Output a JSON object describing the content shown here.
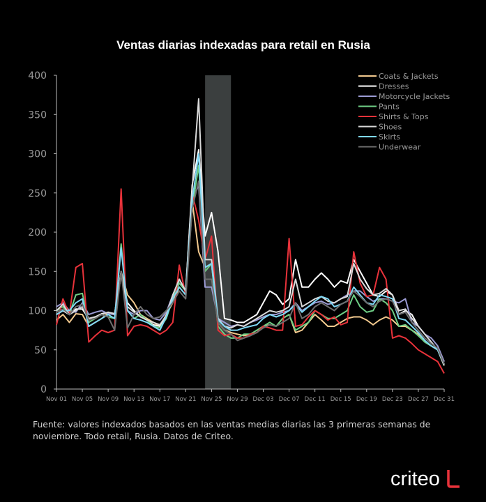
{
  "chart_data": {
    "type": "line",
    "title": "Ventas diarias indexadas para retail en Rusia",
    "ylim": [
      0,
      400
    ],
    "yticks": [
      0,
      50,
      100,
      150,
      200,
      250,
      300,
      350,
      400
    ],
    "xticks": [
      "Nov 01",
      "Nov 05",
      "Nov 09",
      "Nov 13",
      "Nov 17",
      "Nov 21",
      "Nov 25",
      "Nov 29",
      "Dec 03",
      "Dec 07",
      "Dec 11",
      "Dec 15",
      "Dec 19",
      "Dec 23",
      "Dec 27",
      "Dec 31"
    ],
    "x_days": 61,
    "highlight": {
      "from_index": 23,
      "to_index": 27
    },
    "legend_position": "top-right",
    "series": [
      {
        "name": "Coats & Jackets",
        "color": "#f2c98e",
        "values": [
          88,
          95,
          85,
          96,
          95,
          80,
          85,
          90,
          97,
          95,
          150,
          120,
          110,
          95,
          90,
          85,
          80,
          95,
          110,
          130,
          120,
          240,
          175,
          155,
          160,
          85,
          75,
          72,
          70,
          68,
          70,
          72,
          80,
          82,
          80,
          90,
          95,
          72,
          75,
          85,
          95,
          88,
          80,
          80,
          85,
          90,
          92,
          92,
          88,
          82,
          88,
          92,
          88,
          80,
          80,
          75,
          70,
          60,
          55,
          50,
          30
        ]
      },
      {
        "name": "Dresses",
        "color": "#ffffff",
        "values": [
          95,
          100,
          95,
          102,
          102,
          90,
          92,
          96,
          98,
          96,
          145,
          110,
          100,
          92,
          88,
          82,
          80,
          92,
          115,
          140,
          125,
          260,
          305,
          195,
          225,
          175,
          90,
          88,
          85,
          85,
          90,
          95,
          110,
          125,
          120,
          108,
          115,
          165,
          130,
          130,
          140,
          148,
          140,
          130,
          138,
          135,
          165,
          150,
          135,
          120,
          118,
          125,
          120,
          95,
          100,
          95,
          80,
          70,
          60,
          50,
          35
        ]
      },
      {
        "name": "Motorcycle Jackets",
        "color": "#9b9bd4",
        "values": [
          105,
          110,
          100,
          98,
          110,
          95,
          98,
          100,
          96,
          95,
          150,
          100,
          95,
          100,
          100,
          90,
          88,
          98,
          120,
          135,
          125,
          240,
          260,
          130,
          130,
          90,
          85,
          80,
          82,
          80,
          85,
          88,
          92,
          95,
          95,
          98,
          100,
          110,
          100,
          105,
          110,
          112,
          108,
          110,
          115,
          120,
          125,
          125,
          118,
          112,
          115,
          115,
          112,
          110,
          115,
          85,
          80,
          70,
          65,
          55,
          35
        ]
      },
      {
        "name": "Pants",
        "color": "#6fcf86",
        "values": [
          100,
          105,
          95,
          120,
          122,
          85,
          90,
          95,
          92,
          90,
          185,
          100,
          90,
          95,
          88,
          80,
          78,
          90,
          115,
          135,
          125,
          230,
          285,
          150,
          160,
          80,
          70,
          65,
          65,
          70,
          70,
          75,
          80,
          85,
          80,
          90,
          95,
          75,
          80,
          85,
          100,
          95,
          90,
          90,
          95,
          100,
          120,
          105,
          98,
          100,
          115,
          110,
          100,
          80,
          82,
          75,
          68,
          60,
          55,
          50,
          30
        ]
      },
      {
        "name": "Shirts & Tops",
        "color": "#e8323a",
        "values": [
          82,
          115,
          95,
          155,
          160,
          60,
          68,
          75,
          72,
          75,
          255,
          68,
          80,
          82,
          80,
          75,
          70,
          75,
          85,
          158,
          120,
          250,
          215,
          165,
          195,
          75,
          68,
          70,
          65,
          65,
          70,
          72,
          80,
          78,
          75,
          75,
          192,
          80,
          82,
          92,
          100,
          95,
          88,
          92,
          82,
          85,
          175,
          135,
          118,
          120,
          155,
          140,
          65,
          68,
          65,
          58,
          50,
          45,
          40,
          35,
          20
        ]
      },
      {
        "name": "Shoes",
        "color": "#d9d9d9",
        "values": [
          100,
          108,
          95,
          100,
          105,
          90,
          92,
          95,
          98,
          96,
          150,
          105,
          98,
          92,
          88,
          85,
          82,
          94,
          120,
          140,
          125,
          255,
          370,
          165,
          165,
          90,
          80,
          78,
          82,
          80,
          85,
          90,
          95,
          100,
          98,
          100,
          105,
          140,
          105,
          110,
          115,
          118,
          112,
          110,
          115,
          118,
          160,
          140,
          128,
          120,
          122,
          128,
          120,
          100,
          102,
          90,
          80,
          70,
          60,
          50,
          30
        ]
      },
      {
        "name": "Skirts",
        "color": "#7fd8f5",
        "values": [
          95,
          100,
          100,
          110,
          115,
          80,
          85,
          90,
          95,
          90,
          180,
          100,
          90,
          88,
          85,
          80,
          75,
          92,
          115,
          130,
          120,
          240,
          300,
          155,
          160,
          88,
          80,
          75,
          75,
          78,
          80,
          82,
          90,
          95,
          92,
          95,
          100,
          108,
          98,
          105,
          112,
          118,
          115,
          105,
          108,
          112,
          130,
          120,
          110,
          108,
          120,
          118,
          115,
          90,
          88,
          80,
          72,
          62,
          55,
          50,
          32
        ]
      },
      {
        "name": "Underwear",
        "color": "#6e6e6e",
        "values": [
          98,
          102,
          95,
          105,
          108,
          88,
          90,
          95,
          92,
          75,
          150,
          78,
          95,
          105,
          95,
          90,
          92,
          100,
          110,
          125,
          115,
          230,
          265,
          140,
          140,
          85,
          75,
          70,
          62,
          65,
          68,
          72,
          78,
          82,
          80,
          85,
          90,
          110,
          90,
          95,
          105,
          110,
          105,
          100,
          108,
          112,
          125,
          118,
          110,
          105,
          112,
          115,
          112,
          95,
          98,
          85,
          75,
          65,
          58,
          52,
          32
        ]
      }
    ]
  },
  "source_text": "Fuente: valores indexados basados en las ventas medias diarias las 3 primeras semanas de noviembre. Todo retail, Rusia. Datos de Criteo.",
  "logo_text": "criteo"
}
